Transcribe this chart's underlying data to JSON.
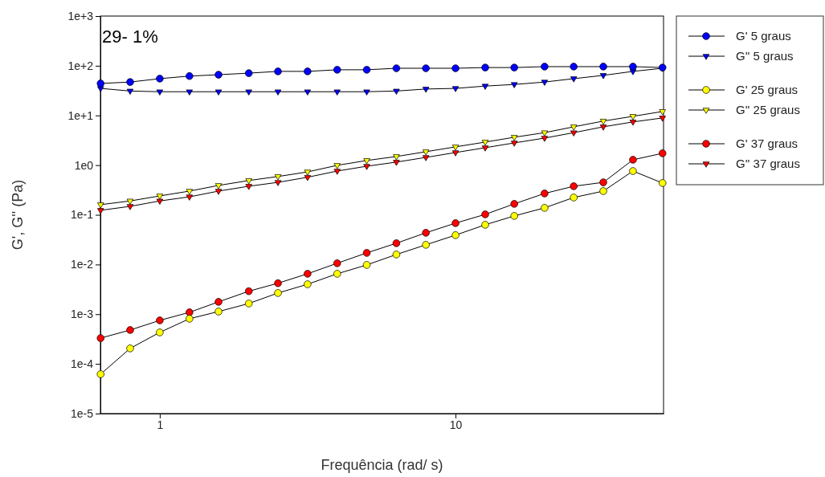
{
  "chart_data": {
    "type": "line",
    "xlabel": "Frequência (rad/ s)",
    "ylabel": "G', G'' (Pa)",
    "annotations": [
      "29- 1%"
    ],
    "x": [
      0.631,
      0.794,
      1,
      1.26,
      1.58,
      2,
      2.51,
      3.16,
      3.98,
      5.01,
      6.31,
      7.94,
      10,
      12.6,
      15.8,
      20,
      25.1,
      31.6,
      39.8,
      50.1
    ],
    "log": "xy",
    "xlim": [
      0.63,
      50.5
    ],
    "ylim": [
      1e-05,
      1000
    ],
    "xticks": [
      1,
      10
    ],
    "yticks": [
      {
        "value": 1e-05,
        "label": "1e-5"
      },
      {
        "value": 0.0001,
        "label": "1e-4"
      },
      {
        "value": 0.001,
        "label": "1e-3"
      },
      {
        "value": 0.01,
        "label": "1e-2"
      },
      {
        "value": 0.1,
        "label": "1e-1"
      },
      {
        "value": 1,
        "label": "1e0"
      },
      {
        "value": 10,
        "label": "1e+1"
      },
      {
        "value": 100,
        "label": "1e+2"
      },
      {
        "value": 1000,
        "label": "1e+3"
      }
    ],
    "grid": false,
    "legend": "right",
    "line_style": "solid",
    "series": [
      {
        "name": "G' 5 graus",
        "color": "#0000ff",
        "marker": "circle",
        "values": [
          44,
          47,
          55,
          62,
          66,
          71,
          77,
          77,
          83,
          83,
          89,
          89,
          89,
          92,
          92,
          96,
          96,
          96,
          96,
          92
        ]
      },
      {
        "name": "G'' 5 graus",
        "color": "#0000ff",
        "marker": "triangle",
        "values": [
          35,
          31,
          30,
          30,
          30,
          30,
          30,
          30,
          30,
          30,
          31,
          34,
          35,
          39,
          42,
          47,
          55,
          64,
          77,
          89
        ]
      },
      {
        "name": "G' 25 graus",
        "color": "#ffff00",
        "marker": "circle",
        "values": [
          6.2e-05,
          0.000205,
          0.00043,
          0.00081,
          0.00113,
          0.00164,
          0.00267,
          0.004,
          0.0065,
          0.0098,
          0.0159,
          0.0249,
          0.039,
          0.063,
          0.095,
          0.138,
          0.223,
          0.3,
          0.76,
          0.436
        ]
      },
      {
        "name": "G'' 25 graus",
        "color": "#ffff00",
        "marker": "triangle",
        "values": [
          0.16,
          0.19,
          0.24,
          0.3,
          0.39,
          0.49,
          0.59,
          0.73,
          0.99,
          1.24,
          1.49,
          1.86,
          2.33,
          2.91,
          3.64,
          4.5,
          5.9,
          7.7,
          9.6,
          12
        ]
      },
      {
        "name": "G' 37 graus",
        "color": "#ff0000",
        "marker": "circle",
        "values": [
          0.00033,
          0.00048,
          0.00075,
          0.00109,
          0.00177,
          0.0029,
          0.0042,
          0.0065,
          0.0106,
          0.0171,
          0.0268,
          0.0435,
          0.068,
          0.102,
          0.166,
          0.269,
          0.376,
          0.45,
          1.28,
          1.73
        ]
      },
      {
        "name": "G'' 37 graus",
        "color": "#ff0000",
        "marker": "triangle",
        "values": [
          0.123,
          0.148,
          0.19,
          0.23,
          0.3,
          0.376,
          0.45,
          0.57,
          0.76,
          0.95,
          1.15,
          1.43,
          1.79,
          2.24,
          2.8,
          3.5,
          4.5,
          5.9,
          7.4,
          8.9
        ]
      }
    ]
  }
}
